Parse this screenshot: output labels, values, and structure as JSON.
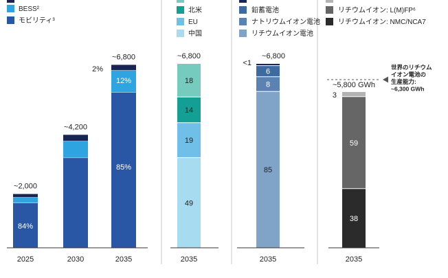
{
  "colors": {
    "navy": "#1a2651",
    "mobility": "#2a57a5",
    "bess": "#2ea4e0",
    "na": "#149f94",
    "eu": "#6fbfe9",
    "china": "#a7dcf0",
    "other_region": "#76cbbf",
    "leadacid": "#3d6aa1",
    "naion": "#5a83b4",
    "liion": "#7fa4c8",
    "lfp": "#666666",
    "nmc": "#2b2b2b",
    "capacity": "#b3b3b3",
    "axis": "#333333",
    "divider": "#c9c9c9"
  },
  "chart_data": [
    {
      "type": "bar",
      "stacked": true,
      "categories": [
        "2025",
        "2030",
        "2035"
      ],
      "series": [
        {
          "name": "モビリティ³",
          "values": [
            84,
            null,
            85
          ],
          "color_key": "mobility"
        },
        {
          "name": "BESS²",
          "values": [
            null,
            null,
            12
          ],
          "color_key": "bess"
        },
        {
          "name": "",
          "values": [
            null,
            null,
            2
          ],
          "color_key": "navy"
        }
      ],
      "totals": [
        "~2,000",
        "~4,200",
        "~6,800"
      ],
      "legend": [
        {
          "label": "BESS²",
          "color_key": "bess"
        },
        {
          "label": "モビリティ³",
          "color_key": "mobility"
        }
      ],
      "segment_labels": [
        [
          "84%"
        ],
        [],
        [
          "85%",
          "12%"
        ]
      ],
      "side_labels": [
        [],
        [],
        [
          "2%"
        ]
      ]
    },
    {
      "type": "bar",
      "stacked": true,
      "categories": [
        "2035"
      ],
      "series": [
        {
          "name": "中国",
          "values": [
            49
          ],
          "color_key": "china"
        },
        {
          "name": "EU",
          "values": [
            19
          ],
          "color_key": "eu"
        },
        {
          "name": "北米",
          "values": [
            14
          ],
          "color_key": "na"
        },
        {
          "name": "",
          "values": [
            18
          ],
          "color_key": "other_region"
        }
      ],
      "totals": [
        "~6,800"
      ],
      "legend": [
        {
          "label": "北米",
          "color_key": "na"
        },
        {
          "label": "EU",
          "color_key": "eu"
        },
        {
          "label": "中国",
          "color_key": "china"
        }
      ]
    },
    {
      "type": "bar",
      "stacked": true,
      "categories": [
        "2035"
      ],
      "series": [
        {
          "name": "リチウムイオン電池",
          "values": [
            85
          ],
          "color_key": "liion"
        },
        {
          "name": "ナトリウムイオン電池",
          "values": [
            8
          ],
          "color_key": "naion"
        },
        {
          "name": "鉛蓄電池",
          "values": [
            6
          ],
          "color_key": "leadacid"
        },
        {
          "name": "",
          "values": [
            1
          ],
          "color_key": "navy"
        }
      ],
      "totals": [
        "~6,800"
      ],
      "side_label": "<1",
      "legend": [
        {
          "label": "鉛蓄電池",
          "color_key": "leadacid"
        },
        {
          "label": "ナトリウムイオン電池",
          "color_key": "naion"
        },
        {
          "label": "リチウムイオン電池",
          "color_key": "liion"
        }
      ]
    },
    {
      "type": "bar",
      "stacked": true,
      "categories": [
        "2035"
      ],
      "series": [
        {
          "name": "リチウムイオン: NMC/NCA7",
          "values": [
            38
          ],
          "color_key": "nmc"
        },
        {
          "name": "リチウムイオン: L(M)FP⁶",
          "values": [
            59
          ],
          "color_key": "lfp"
        },
        {
          "name": "",
          "values": [
            3
          ],
          "color_key": "capacity"
        }
      ],
      "totals": [
        "~5,800 GWh"
      ],
      "side_label": "3",
      "annotation": [
        "世界のリチウム",
        "イオン電池の",
        "生産能力:",
        "~6,300 GWh"
      ],
      "legend": [
        {
          "label": "リチウムイオン: L(M)FP⁶",
          "color_key": "lfp"
        },
        {
          "label": "リチウムイオン: NMC/NCA7",
          "color_key": "nmc"
        }
      ]
    }
  ]
}
